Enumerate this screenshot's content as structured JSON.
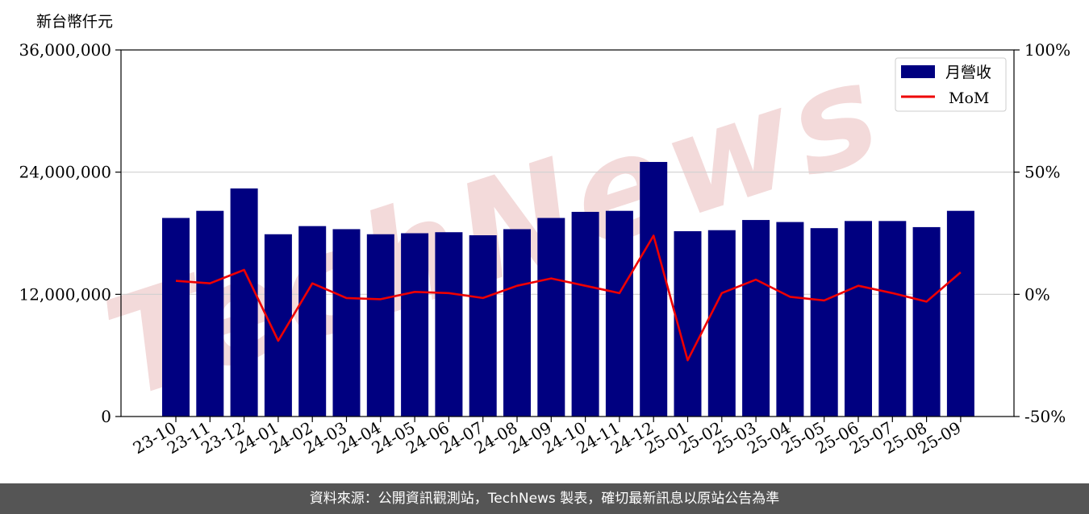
{
  "chart_data": {
    "type": "bar",
    "unit_label": "新台幣仟元",
    "categories": [
      "23-10",
      "23-11",
      "23-12",
      "24-01",
      "24-02",
      "24-03",
      "24-04",
      "24-05",
      "24-06",
      "24-07",
      "24-08",
      "24-09",
      "24-10",
      "24-11",
      "24-12",
      "25-01",
      "25-02",
      "25-03",
      "25-04",
      "25-05",
      "25-06",
      "25-07",
      "25-08",
      "25-09"
    ],
    "series": [
      {
        "name": "月營收",
        "axis": "left",
        "type": "bar",
        "color": "#000080",
        "values": [
          19500000,
          20200000,
          22400000,
          17900000,
          18700000,
          18400000,
          17900000,
          18000000,
          18100000,
          17800000,
          18400000,
          19500000,
          20100000,
          20200000,
          25000000,
          18200000,
          18300000,
          19300000,
          19100000,
          18500000,
          19200000,
          19200000,
          18600000,
          20200000
        ]
      },
      {
        "name": "MoM",
        "axis": "right",
        "type": "line",
        "color": "#ee0000",
        "values": [
          5.5,
          4.5,
          10.0,
          -19.0,
          4.5,
          -1.5,
          -2.0,
          1.0,
          0.5,
          -1.5,
          3.5,
          6.5,
          3.5,
          0.5,
          24.0,
          -27.0,
          0.5,
          6.0,
          -1.0,
          -2.5,
          3.5,
          0.5,
          -3.0,
          9.0
        ]
      }
    ],
    "y_left": {
      "range": [
        0,
        36000000
      ],
      "ticks": [
        0,
        12000000,
        24000000,
        36000000
      ],
      "tick_labels": [
        "0",
        "12,000,000",
        "24,000,000",
        "36,000,000"
      ]
    },
    "y_right": {
      "range": [
        -50,
        100
      ],
      "ticks": [
        -50,
        0,
        50,
        100
      ],
      "tick_labels": [
        "-50%",
        "0%",
        "50%",
        "100%"
      ]
    },
    "grid": "horizontal",
    "legend_position": "top-right",
    "watermark": "TechNews"
  },
  "footer": {
    "text": "資料來源：公開資訊觀測站，TechNews 製表，確切最新訊息以原站公告為準"
  }
}
